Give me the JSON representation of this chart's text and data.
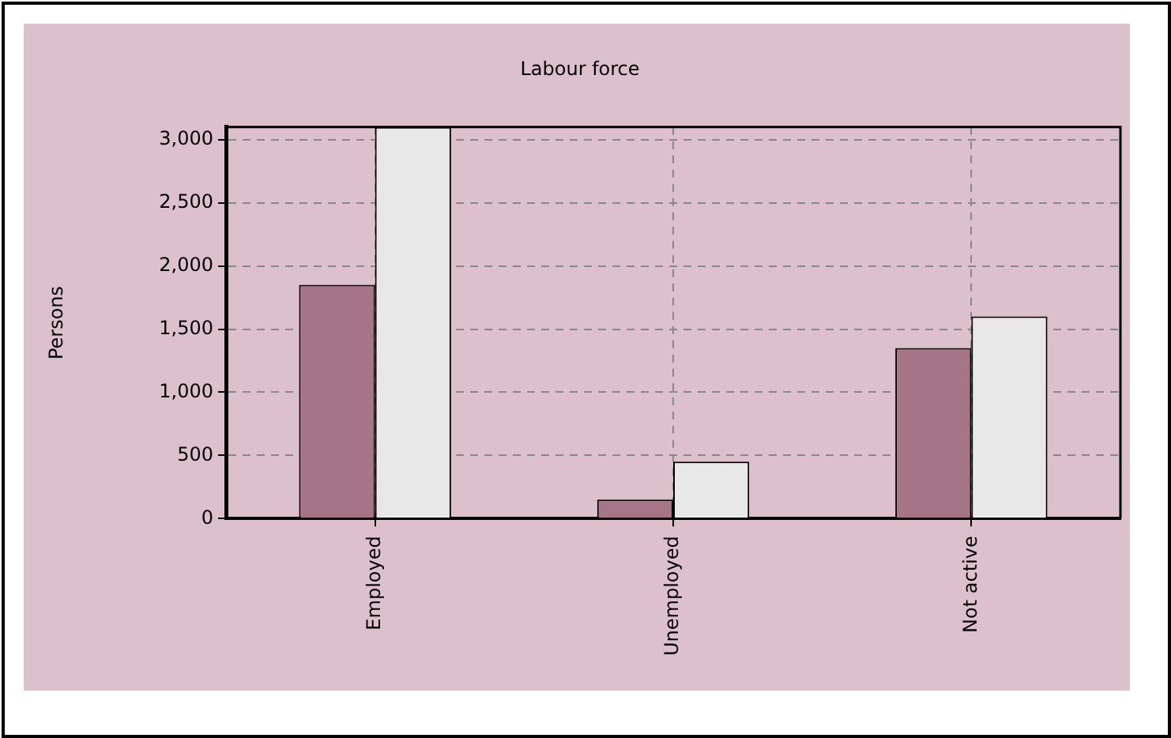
{
  "chart_data": {
    "type": "bar",
    "title": "Labour force",
    "ylabel": "Persons",
    "categories": [
      "Employed",
      "Unemployed",
      "Not active"
    ],
    "series": [
      {
        "color": "#a67588",
        "values": [
          1850,
          150,
          1350
        ]
      },
      {
        "color": "#e8e8e8",
        "values": [
          3100,
          450,
          1600
        ]
      }
    ],
    "ylim": [
      0,
      3100
    ],
    "yticks": [
      0,
      500,
      {
        "value": 1000,
        "label": "1,000"
      },
      {
        "value": 1500,
        "label": "1,500"
      },
      {
        "value": 2000,
        "label": "2,000"
      },
      {
        "value": 2500,
        "label": "2,500"
      },
      {
        "value": 3000,
        "label": "3,000"
      }
    ],
    "grid": true,
    "legend": false
  }
}
